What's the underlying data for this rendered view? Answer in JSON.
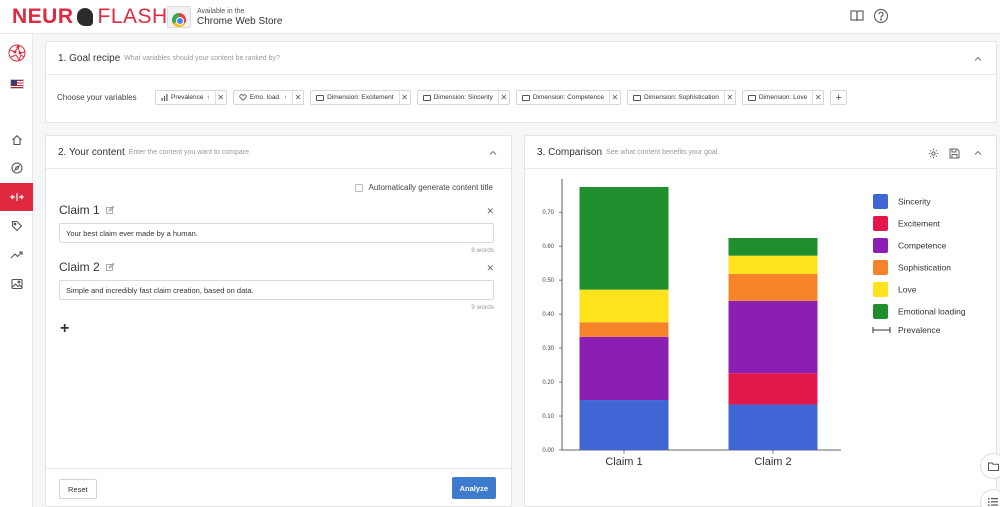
{
  "brand": {
    "part1": "NEUR",
    "part2": "FLASH"
  },
  "chrome_store": {
    "line1": "Available in the",
    "line2": "Chrome Web Store"
  },
  "goal": {
    "title": "1. Goal recipe",
    "subtitle": "What variables should your content be ranked by?",
    "vars_label": "Choose your variables",
    "chips": [
      {
        "label": "Prevalence",
        "icon": "bar-chart-icon",
        "arrow": "↑"
      },
      {
        "label": "Emo. load.",
        "icon": "heart-icon",
        "arrow": "↑"
      },
      {
        "label": "Dimension: Excitement",
        "icon": "folder-icon",
        "arrow": ""
      },
      {
        "label": "Dimension: Sincerity",
        "icon": "folder-icon",
        "arrow": ""
      },
      {
        "label": "Dimension: Competence",
        "icon": "folder-icon",
        "arrow": ""
      },
      {
        "label": "Dimension: Sophistication",
        "icon": "folder-icon",
        "arrow": ""
      },
      {
        "label": "Dimension: Love",
        "icon": "folder-icon",
        "arrow": ""
      }
    ],
    "add": "+"
  },
  "content": {
    "title": "2. Your content",
    "subtitle": "Enter the content you want to compare.",
    "auto_gen_label": "Automatically generate content title",
    "claims": [
      {
        "title": "Claim 1",
        "text": "Your best claim ever made by a human.",
        "words": "8 words"
      },
      {
        "title": "Claim 2",
        "text": "Simple and incredibly fast claim creation, based on data.",
        "words": "9 words"
      }
    ],
    "add": "+",
    "reset": "Reset",
    "analyze": "Analyze"
  },
  "comparison": {
    "title": "3. Comparison",
    "subtitle": "See what content benefits your goal."
  },
  "chart_data": {
    "type": "bar",
    "stacked": true,
    "categories": [
      "Claim 1",
      "Claim 2"
    ],
    "ylim": [
      0,
      0.78
    ],
    "yticks": [
      "0.00",
      "0.10",
      "0.20",
      "0.30",
      "0.40",
      "0.50",
      "0.60",
      "0.70"
    ],
    "series": [
      {
        "name": "Sincerity",
        "color": "#3f66d4",
        "values": [
          0.147,
          0.134
        ]
      },
      {
        "name": "Excitement",
        "color": "#e2174b",
        "values": [
          0.0,
          0.092
        ]
      },
      {
        "name": "Competence",
        "color": "#8b1fb3",
        "values": [
          0.186,
          0.213
        ]
      },
      {
        "name": "Sophistication",
        "color": "#f5832a",
        "values": [
          0.043,
          0.079
        ]
      },
      {
        "name": "Love",
        "color": "#fde21c",
        "values": [
          0.096,
          0.054
        ]
      },
      {
        "name": "Emotional loading",
        "color": "#1f8f2e",
        "values": [
          0.302,
          0.052
        ]
      }
    ],
    "legend_extra": "Prevalence",
    "legend_position": "right"
  }
}
